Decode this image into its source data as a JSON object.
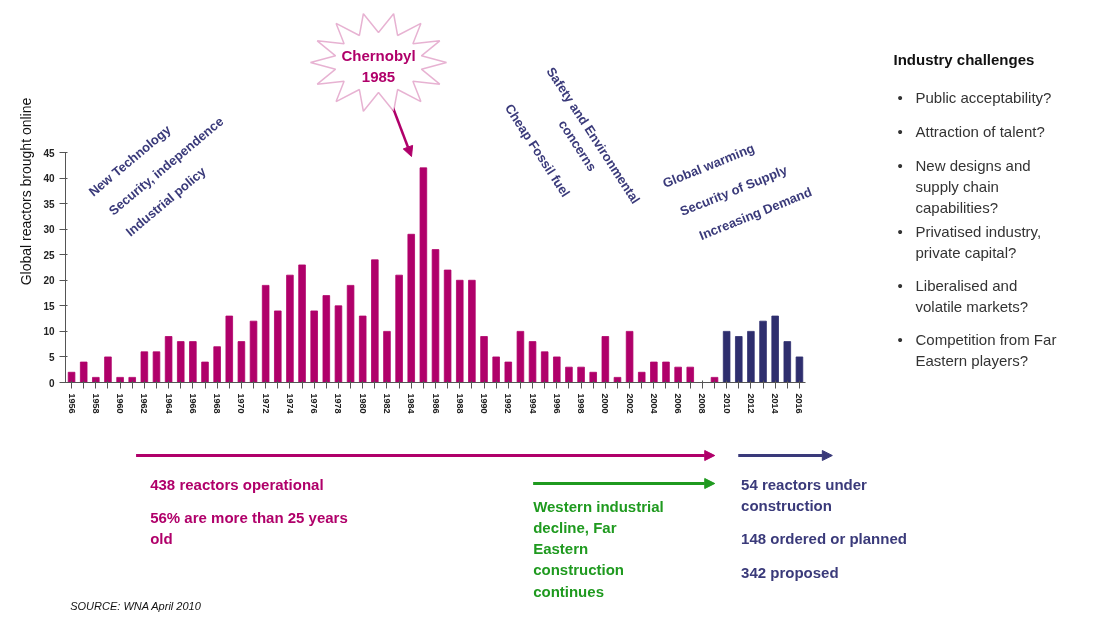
{
  "chart_data": {
    "type": "bar",
    "ylabel": "Global reactors brought online",
    "categories": [
      "1956",
      null,
      "1958",
      null,
      "1960",
      null,
      "1962",
      null,
      "1964",
      null,
      "1966",
      null,
      "1968",
      null,
      "1970",
      null,
      "1972",
      null,
      "1974",
      null,
      "1976",
      null,
      "1978",
      null,
      "1980",
      null,
      "1982",
      null,
      "1984",
      null,
      "1986",
      null,
      "1988",
      null,
      "1990",
      null,
      "1992",
      null,
      "1994",
      null,
      "1996",
      null,
      "1998",
      null,
      "2000",
      null,
      "2002",
      null,
      "2004",
      null,
      "2006",
      null,
      "2008",
      null,
      "2010",
      null,
      "2012",
      null,
      "2014",
      null,
      "2016"
    ],
    "series": [
      {
        "color": "#b0006a",
        "values": [
          2,
          4,
          1,
          5,
          1,
          1,
          6,
          6,
          9,
          8,
          8,
          4,
          7,
          13,
          8,
          12,
          19,
          14,
          21,
          23,
          14,
          17,
          15,
          19,
          13,
          24,
          10,
          21,
          29,
          42,
          26,
          22,
          20,
          20,
          9,
          5,
          4,
          10,
          8,
          6,
          5,
          3,
          3,
          2,
          9,
          1,
          10,
          2,
          4,
          4,
          3,
          3,
          0,
          1,
          null,
          null,
          null,
          null,
          null,
          null,
          null
        ]
      },
      {
        "color": "#2e2e6e",
        "values": [
          null,
          null,
          null,
          null,
          null,
          null,
          null,
          null,
          null,
          null,
          null,
          null,
          null,
          null,
          null,
          null,
          null,
          null,
          null,
          null,
          null,
          null,
          null,
          null,
          null,
          null,
          null,
          null,
          null,
          null,
          null,
          null,
          null,
          null,
          null,
          null,
          null,
          null,
          null,
          null,
          null,
          null,
          null,
          null,
          null,
          null,
          null,
          null,
          null,
          null,
          null,
          null,
          null,
          null,
          10,
          9,
          10,
          12,
          13,
          8,
          5
        ]
      }
    ],
    "ylim": [
      0,
      45
    ],
    "yticks": [
      0,
      5,
      10,
      15,
      20,
      25,
      30,
      35,
      40,
      45
    ],
    "grid": false,
    "annotations": [
      "Chernobyl\n1985",
      "New Technology",
      "Security, independence",
      "Industrial policy",
      "Safety and Environmental\nconcerns",
      "Cheap Fossil fuel",
      "Global warming",
      "Security of Supply",
      "Increasing Demand",
      "Industry challenges",
      "Public acceptability?",
      "Attraction of talent?",
      "New designs and\nsupply chain\ncapabilities?",
      "Privatised industry,\nprivate capital?",
      "Liberalised and\nvolatile markets?",
      "Competition from Far\nEastern players?",
      "438 reactors operational",
      "56% are more than 25 years\nold",
      "Western industrial\ndecline, Far\nEastern\nconstruction\ncontinues",
      "54  reactors under\nconstruction",
      "148 ordered or planned",
      "342 proposed",
      "SOURCE:  WNA April 2010",
      "•",
      "•",
      "•",
      "•",
      "•",
      "•"
    ]
  }
}
